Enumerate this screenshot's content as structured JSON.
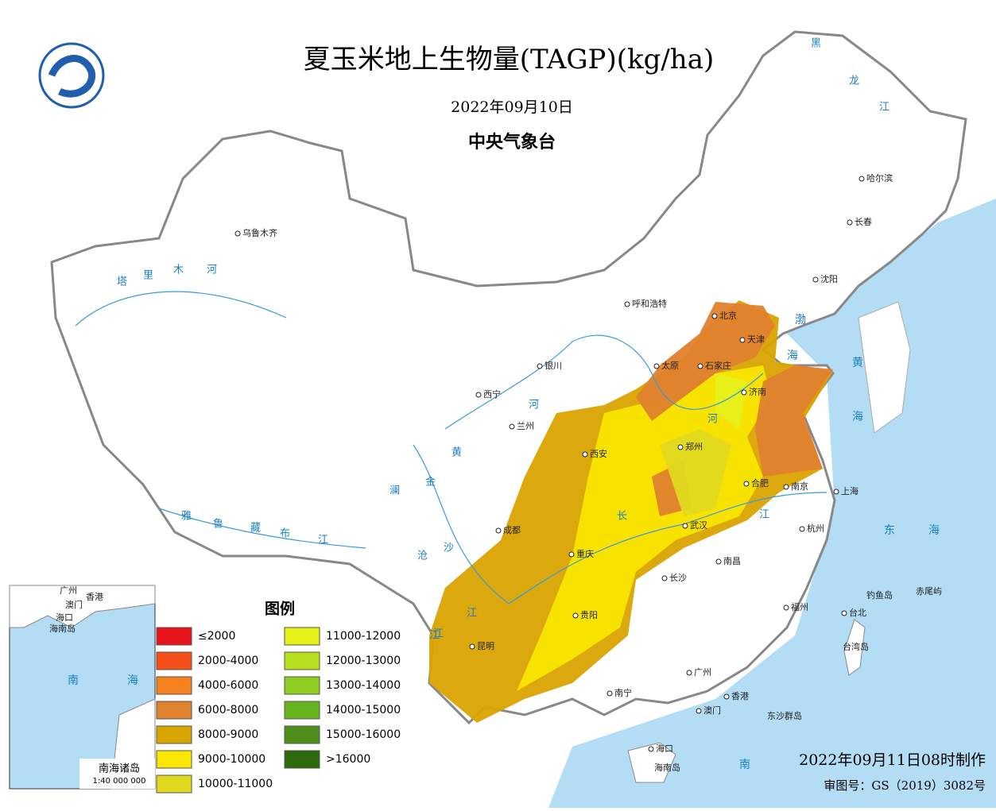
{
  "header": {
    "title": "夏玉米地上生物量(TAGP)(kg/ha)",
    "date": "2022年09月10日",
    "agency": "中央气象台"
  },
  "legend": {
    "title": "图例",
    "items": [
      {
        "label": "≤2000",
        "color": "#e8141c"
      },
      {
        "label": "2000-4000",
        "color": "#f5501a"
      },
      {
        "label": "4000-6000",
        "color": "#f5821e"
      },
      {
        "label": "6000-8000",
        "color": "#e0812e"
      },
      {
        "label": "8000-9000",
        "color": "#d9a300"
      },
      {
        "label": "9000-10000",
        "color": "#fae600"
      },
      {
        "label": "10000-11000",
        "color": "#e0d91e"
      },
      {
        "label": "11000-12000",
        "color": "#e6f019"
      },
      {
        "label": "12000-13000",
        "color": "#b5de1c"
      },
      {
        "label": "13000-14000",
        "color": "#8fcc21"
      },
      {
        "label": "14000-15000",
        "color": "#66b31f"
      },
      {
        "label": "15000-16000",
        "color": "#4d8f1a"
      },
      {
        "label": ">16000",
        "color": "#2e6b0d"
      }
    ]
  },
  "cities": [
    "乌鲁木齐",
    "哈尔滨",
    "长春",
    "沈阳",
    "呼和浩特",
    "北京",
    "天津",
    "银川",
    "太原",
    "石家庄",
    "济南",
    "西宁",
    "兰州",
    "西安",
    "郑州",
    "合肥",
    "南京",
    "上海",
    "成都",
    "武汉",
    "杭州",
    "重庆",
    "南昌",
    "长沙",
    "贵阳",
    "福州",
    "台北",
    "昆明",
    "广州",
    "南宁",
    "香港",
    "澳门",
    "海口"
  ],
  "places": [
    "台湾岛",
    "海南岛",
    "东沙群岛",
    "钓鱼岛",
    "赤尾屿"
  ],
  "water": [
    "塔",
    "里",
    "木",
    "河",
    "黑",
    "龙",
    "江",
    "渤",
    "海",
    "黄",
    "海",
    "东",
    "海",
    "南",
    "黄",
    "河",
    "河",
    "长",
    "江",
    "江",
    "澜",
    "沧",
    "江",
    "金",
    "沙",
    "江",
    "雅",
    "鲁",
    "藏",
    "布",
    "江"
  ],
  "inset": {
    "labels": [
      "广州",
      "香港",
      "澳门",
      "海口",
      "海南岛",
      "南",
      "海"
    ],
    "title": "南海诸岛",
    "scale": "1:40 000 000"
  },
  "footer": {
    "made": "2022年09月11日08时制作",
    "approval": "审图号：GS（2019）3082号"
  }
}
